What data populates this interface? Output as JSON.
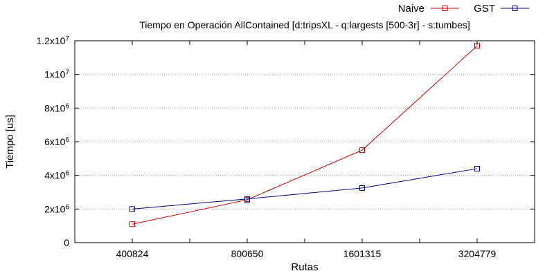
{
  "chart_data": {
    "type": "line",
    "title": "Tiempo en Operación AllContained [d:tripsXL - q:largests [500-3r] - s:tumbes]",
    "xlabel": "Rutas",
    "ylabel": "Tiempo [us]",
    "categories": [
      "400824",
      "800650",
      "1601315",
      "3204779"
    ],
    "ylim": [
      0,
      12000000
    ],
    "yticks": [
      {
        "value": 0,
        "mantissa": "0",
        "exp": ""
      },
      {
        "value": 2000000,
        "mantissa": "2x10",
        "exp": "6"
      },
      {
        "value": 4000000,
        "mantissa": "4x10",
        "exp": "6"
      },
      {
        "value": 6000000,
        "mantissa": "6x10",
        "exp": "6"
      },
      {
        "value": 8000000,
        "mantissa": "8x10",
        "exp": "6"
      },
      {
        "value": 10000000,
        "mantissa": "1x10",
        "exp": "7"
      },
      {
        "value": 12000000,
        "mantissa": "1.2x10",
        "exp": "7"
      }
    ],
    "grid": true,
    "legend_position": "top-right",
    "series": [
      {
        "name": "Naive",
        "color": "#cc0000",
        "values": [
          1100000,
          2550000,
          5500000,
          11700000
        ]
      },
      {
        "name": "GST",
        "color": "#00008b",
        "values": [
          2000000,
          2600000,
          3250000,
          4400000
        ]
      }
    ]
  }
}
